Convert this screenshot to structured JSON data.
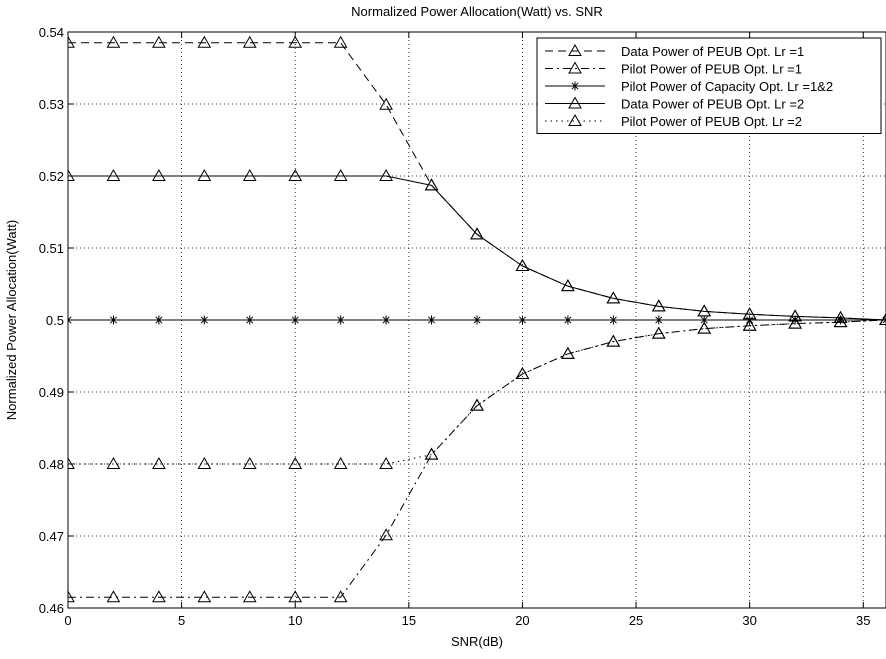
{
  "chart_data": {
    "type": "line",
    "title": "Normalized Power Allocation(Watt) vs. SNR",
    "xlabel": "SNR(dB)",
    "ylabel": "Normalized Power Allocation(Watt)",
    "xlim": [
      0,
      36
    ],
    "ylim": [
      0.46,
      0.54
    ],
    "xticks": [
      0,
      5,
      10,
      15,
      20,
      25,
      30,
      35
    ],
    "xtick_labels": [
      "0",
      "5",
      "10",
      "15",
      "20",
      "25",
      "30",
      "35"
    ],
    "yticks": [
      0.46,
      0.47,
      0.48,
      0.49,
      0.5,
      0.51,
      0.52,
      0.53,
      0.54
    ],
    "ytick_labels": [
      "0.46",
      "0.47",
      "0.48",
      "0.49",
      "0.5",
      "0.51",
      "0.52",
      "0.53",
      "0.54"
    ],
    "grid": true,
    "legend_position": "top-right",
    "x": [
      0,
      2,
      4,
      6,
      8,
      10,
      12,
      14,
      16,
      18,
      20,
      22,
      24,
      26,
      28,
      30,
      32,
      34,
      36
    ],
    "series": [
      {
        "name": "Data Power of PEUB Opt. Lr =1",
        "line_style": "dashed",
        "marker": "triangle",
        "values": [
          0.5385,
          0.5385,
          0.5385,
          0.5385,
          0.5385,
          0.5385,
          0.5385,
          0.5299,
          0.5187,
          0.5119,
          0.5075,
          0.5047,
          0.503,
          0.5019,
          0.5012,
          0.5008,
          0.5005,
          0.5003,
          0.5
        ]
      },
      {
        "name": "Pilot Power of PEUB Opt. Lr =1",
        "line_style": "dashdot",
        "marker": "triangle",
        "values": [
          0.4615,
          0.4615,
          0.4615,
          0.4615,
          0.4615,
          0.4615,
          0.4615,
          0.4701,
          0.4813,
          0.4881,
          0.4925,
          0.4953,
          0.497,
          0.4981,
          0.4988,
          0.4992,
          0.4995,
          0.4997,
          0.5
        ]
      },
      {
        "name": "Pilot Power of Capacity Opt. Lr =1&2",
        "line_style": "solid",
        "marker": "star",
        "values": [
          0.5,
          0.5,
          0.5,
          0.5,
          0.5,
          0.5,
          0.5,
          0.5,
          0.5,
          0.5,
          0.5,
          0.5,
          0.5,
          0.5,
          0.5,
          0.5,
          0.5,
          0.5,
          0.5
        ]
      },
      {
        "name": "Data Power of PEUB Opt. Lr =2",
        "line_style": "solid",
        "marker": "triangle",
        "values": [
          0.52,
          0.52,
          0.52,
          0.52,
          0.52,
          0.52,
          0.52,
          0.52,
          0.5187,
          0.5119,
          0.5075,
          0.5047,
          0.503,
          0.5019,
          0.5012,
          0.5008,
          0.5005,
          0.5003,
          0.5
        ]
      },
      {
        "name": "Pilot Power of PEUB Opt. Lr =2",
        "line_style": "dotted",
        "marker": "triangle",
        "values": [
          0.48,
          0.48,
          0.48,
          0.48,
          0.48,
          0.48,
          0.48,
          0.48,
          0.4813,
          0.4881,
          0.4925,
          0.4953,
          0.497,
          0.4981,
          0.4988,
          0.4992,
          0.4995,
          0.4997,
          0.5
        ]
      }
    ]
  }
}
